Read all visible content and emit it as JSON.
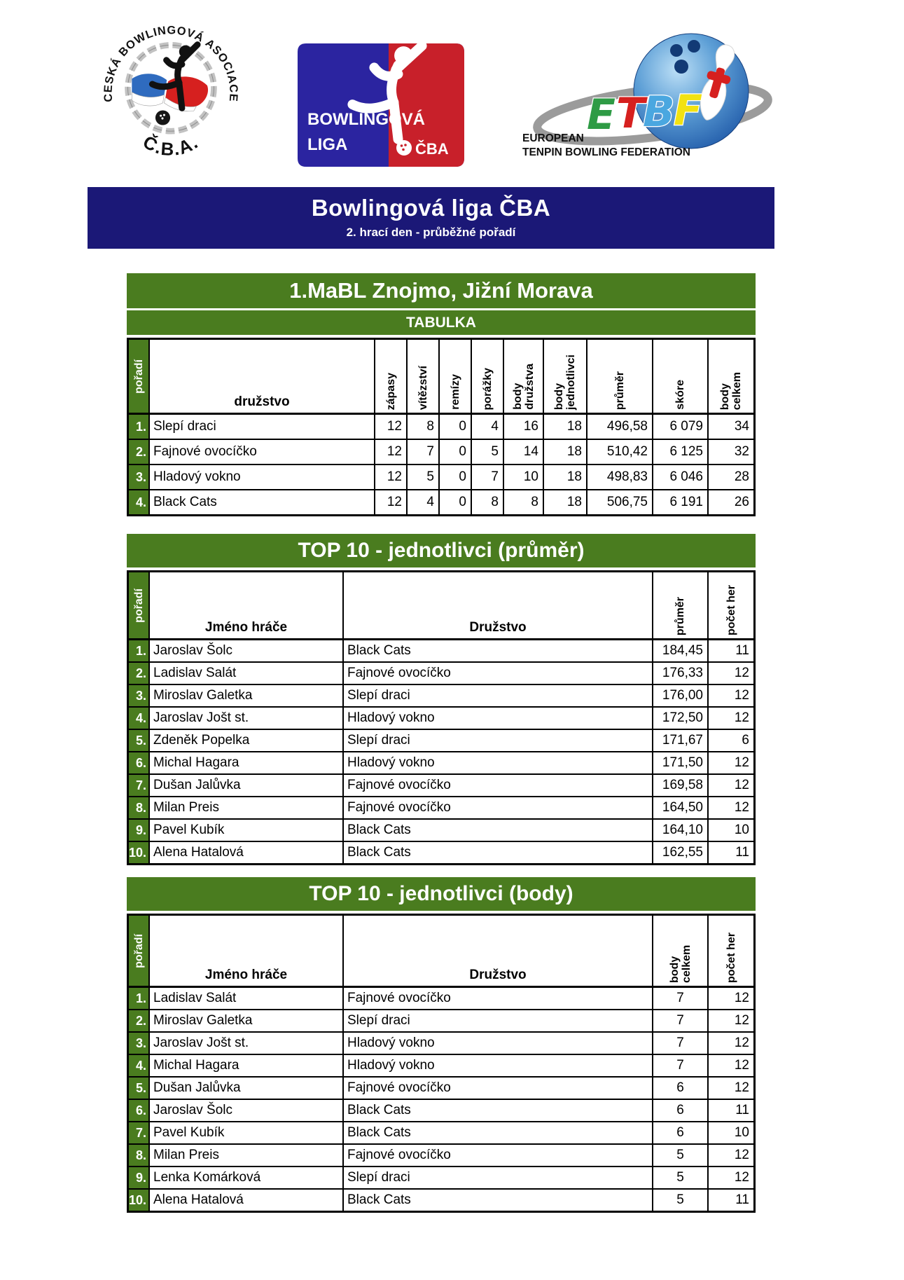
{
  "logos": {
    "cba": {
      "arc_text": "ČESKÁ BOWLINGOVÁ ASOCIACE",
      "bottom_text": "Č.B.A."
    },
    "liga": {
      "line1": "BOWLINGOVÁ",
      "line2": "LIGA",
      "cba_label": "ČBA"
    },
    "etbf": {
      "letter_e": "E",
      "letter_t": "T",
      "letter_b": "B",
      "letter_f": "F",
      "line1": "EUROPEAN",
      "line2": "TENPIN BOWLING FEDERATION"
    }
  },
  "banner": {
    "title": "Bowlingová liga ČBA",
    "subtitle": "2. hrací den - průběžné pořadí",
    "background_color": "#1b1877"
  },
  "theme": {
    "green": "#4a7c1f",
    "navy": "#1b1877"
  },
  "standings": {
    "title": "1.MaBL Znojmo, Jižní Morava",
    "subtitle": "TABULKA",
    "col_poradi": "pořadí",
    "col_druzstvo": "družstvo",
    "col_zapasy": "zápasy",
    "col_vitezstvi": "vítězství",
    "col_remizy": "remízy",
    "col_porazky": "porážky",
    "col_body_druzstva": "body\ndružstva",
    "col_body_jednotlivci": "body\njednotlivci",
    "col_prumer": "průměr",
    "col_skore": "skóre",
    "col_body_celkem": "body\ncelkem",
    "rows": [
      {
        "rank": "1.",
        "team": "Slepí draci",
        "zapasy": "12",
        "vitezstvi": "8",
        "remizy": "0",
        "porazky": "4",
        "body_druzstva": "16",
        "body_jednotlivci": "18",
        "prumer": "496,58",
        "skore": "6 079",
        "body_celkem": "34"
      },
      {
        "rank": "2.",
        "team": "Fajnové ovocíčko",
        "zapasy": "12",
        "vitezstvi": "7",
        "remizy": "0",
        "porazky": "5",
        "body_druzstva": "14",
        "body_jednotlivci": "18",
        "prumer": "510,42",
        "skore": "6 125",
        "body_celkem": "32"
      },
      {
        "rank": "3.",
        "team": "Hladový vokno",
        "zapasy": "12",
        "vitezstvi": "5",
        "remizy": "0",
        "porazky": "7",
        "body_druzstva": "10",
        "body_jednotlivci": "18",
        "prumer": "498,83",
        "skore": "6 046",
        "body_celkem": "28"
      },
      {
        "rank": "4.",
        "team": "Black Cats",
        "zapasy": "12",
        "vitezstvi": "4",
        "remizy": "0",
        "porazky": "8",
        "body_druzstva": "8",
        "body_jednotlivci": "18",
        "prumer": "506,75",
        "skore": "6 191",
        "body_celkem": "26"
      }
    ]
  },
  "top10_prumer": {
    "title": "TOP 10 - jednotlivci (průměr)",
    "col_poradi": "pořadí",
    "col_player": "Jméno hráče",
    "col_team": "Družstvo",
    "col_prumer": "průměr",
    "col_games": "počet her",
    "rows": [
      {
        "rank": "1.",
        "player": "Jaroslav Šolc",
        "team": "Black Cats",
        "prumer": "184,45",
        "games": "11"
      },
      {
        "rank": "2.",
        "player": "Ladislav Salát",
        "team": "Fajnové ovocíčko",
        "prumer": "176,33",
        "games": "12"
      },
      {
        "rank": "3.",
        "player": "Miroslav Galetka",
        "team": "Slepí draci",
        "prumer": "176,00",
        "games": "12"
      },
      {
        "rank": "4.",
        "player": "Jaroslav Jošt st.",
        "team": "Hladový vokno",
        "prumer": "172,50",
        "games": "12"
      },
      {
        "rank": "5.",
        "player": "Zdeněk Popelka",
        "team": "Slepí draci",
        "prumer": "171,67",
        "games": "6"
      },
      {
        "rank": "6.",
        "player": "Michal Hagara",
        "team": "Hladový vokno",
        "prumer": "171,50",
        "games": "12"
      },
      {
        "rank": "7.",
        "player": "Dušan Jalůvka",
        "team": "Fajnové ovocíčko",
        "prumer": "169,58",
        "games": "12"
      },
      {
        "rank": "8.",
        "player": "Milan Preis",
        "team": "Fajnové ovocíčko",
        "prumer": "164,50",
        "games": "12"
      },
      {
        "rank": "9.",
        "player": "Pavel Kubík",
        "team": "Black Cats",
        "prumer": "164,10",
        "games": "10"
      },
      {
        "rank": "10.",
        "player": "Alena Hatalová",
        "team": "Black Cats",
        "prumer": "162,55",
        "games": "11"
      }
    ]
  },
  "top10_body": {
    "title": "TOP 10 - jednotlivci (body)",
    "col_poradi": "pořadí",
    "col_player": "Jméno hráče",
    "col_team": "Družstvo",
    "col_points": "body celkem",
    "col_games": "počet her",
    "rows": [
      {
        "rank": "1.",
        "player": "Ladislav Salát",
        "team": "Fajnové ovocíčko",
        "points": "7",
        "games": "12"
      },
      {
        "rank": "2.",
        "player": "Miroslav Galetka",
        "team": "Slepí draci",
        "points": "7",
        "games": "12"
      },
      {
        "rank": "3.",
        "player": "Jaroslav Jošt st.",
        "team": "Hladový vokno",
        "points": "7",
        "games": "12"
      },
      {
        "rank": "4.",
        "player": "Michal Hagara",
        "team": "Hladový vokno",
        "points": "7",
        "games": "12"
      },
      {
        "rank": "5.",
        "player": "Dušan Jalůvka",
        "team": "Fajnové ovocíčko",
        "points": "6",
        "games": "12"
      },
      {
        "rank": "6.",
        "player": "Jaroslav Šolc",
        "team": "Black Cats",
        "points": "6",
        "games": "11"
      },
      {
        "rank": "7.",
        "player": "Pavel Kubík",
        "team": "Black Cats",
        "points": "6",
        "games": "10"
      },
      {
        "rank": "8.",
        "player": "Milan Preis",
        "team": "Fajnové ovocíčko",
        "points": "5",
        "games": "12"
      },
      {
        "rank": "9.",
        "player": "Lenka Komárková",
        "team": "Slepí draci",
        "points": "5",
        "games": "12"
      },
      {
        "rank": "10.",
        "player": "Alena Hatalová",
        "team": "Black Cats",
        "points": "5",
        "games": "11"
      }
    ]
  }
}
